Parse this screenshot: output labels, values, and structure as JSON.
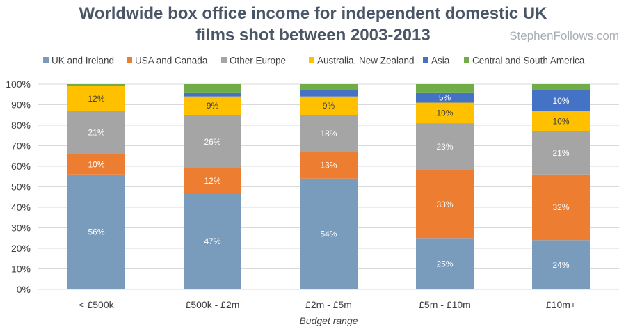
{
  "chart_data": {
    "type": "bar",
    "stacked": true,
    "title": "Worldwide box office income for independent domestic UK films shot between 2003-2013",
    "title_lines": [
      "Worldwide box office income for independent domestic UK",
      "films shot between 2003-2013"
    ],
    "watermark": "StephenFollows.com",
    "xlabel": "Budget range",
    "ylabel": "",
    "ylim": [
      0,
      100
    ],
    "y_ticks": [
      "0%",
      "10%",
      "20%",
      "30%",
      "40%",
      "50%",
      "60%",
      "70%",
      "80%",
      "90%",
      "100%"
    ],
    "grid": true,
    "legend_position": "top",
    "categories": [
      "< £500k",
      "£500k - £2m",
      "£2m - £5m",
      "£5m - £10m",
      "£10m+"
    ],
    "series": [
      {
        "name": "UK and Ireland",
        "color": "#7a9cbc",
        "label_color": "#ffffff",
        "values": [
          56,
          47,
          54,
          25,
          24
        ],
        "labels": [
          "56%",
          "47%",
          "54%",
          "25%",
          "24%"
        ]
      },
      {
        "name": "USA and Canada",
        "color": "#ed7d31",
        "label_color": "#ffffff",
        "values": [
          10,
          12,
          13,
          33,
          32
        ],
        "labels": [
          "10%",
          "12%",
          "13%",
          "33%",
          "32%"
        ]
      },
      {
        "name": "Other Europe",
        "color": "#a5a5a5",
        "label_color": "#ffffff",
        "values": [
          21,
          26,
          18,
          23,
          21
        ],
        "labels": [
          "21%",
          "26%",
          "18%",
          "23%",
          "21%"
        ]
      },
      {
        "name": "Australia, New Zealand",
        "color": "#ffc000",
        "label_color": "#404040",
        "values": [
          12,
          9,
          9,
          10,
          10
        ],
        "labels": [
          "12%",
          "9%",
          "9%",
          "10%",
          "10%"
        ]
      },
      {
        "name": "Asia",
        "color": "#4472c4",
        "label_color": "#ffffff",
        "values": [
          0,
          2,
          3,
          5,
          10
        ],
        "labels": [
          "",
          "",
          "",
          "5%",
          "10%"
        ]
      },
      {
        "name": "Central and South America",
        "color": "#70ad47",
        "label_color": "#ffffff",
        "values": [
          1,
          4,
          3,
          4,
          3
        ],
        "labels": [
          "",
          "",
          "",
          "",
          ""
        ]
      }
    ]
  }
}
